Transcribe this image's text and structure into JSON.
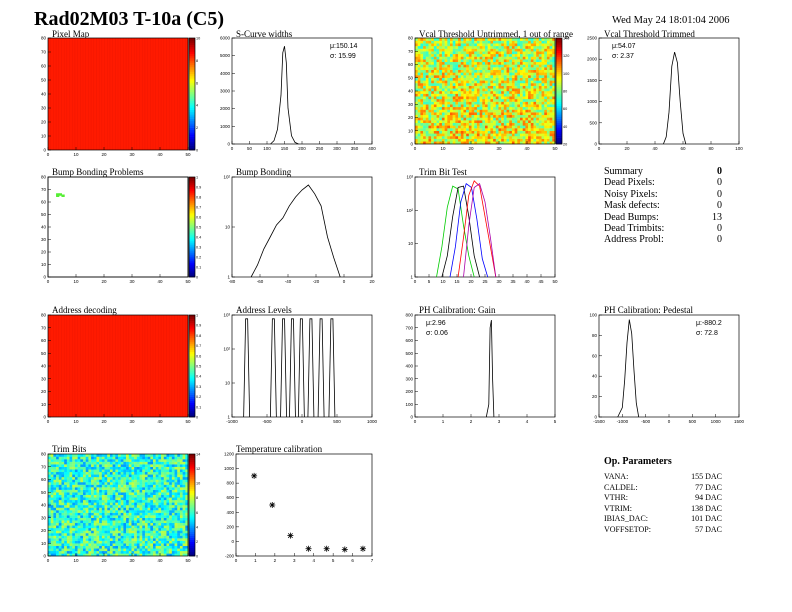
{
  "header": {
    "title": "Rad02M03 T-10a (C5)",
    "date": "Wed May 24 18:01:04 2006"
  },
  "panels": {
    "pixel_map": {
      "title": "Pixel Map",
      "xticks": [
        "0",
        "10",
        "20",
        "30",
        "40",
        "50"
      ],
      "yticks": [
        "0",
        "10",
        "20",
        "30",
        "40",
        "50",
        "60",
        "70",
        "80"
      ],
      "zticks": [
        "0",
        "2",
        "4",
        "6",
        "8",
        "10"
      ]
    },
    "scurve": {
      "title": "S-Curve widths",
      "stat1": "μ:150.14",
      "stat2": "σ: 15.99",
      "xticks": [
        "0",
        "50",
        "100",
        "150",
        "200",
        "250",
        "300",
        "350",
        "400"
      ],
      "yticks": [
        "0",
        "1000",
        "2000",
        "3000",
        "4000",
        "5000",
        "6000"
      ]
    },
    "vcal_untrimmed": {
      "title": "Vcal Threshold Untrimmed, 1 out of range",
      "xticks": [
        "0",
        "10",
        "20",
        "30",
        "40",
        "50"
      ],
      "yticks": [
        "0",
        "10",
        "20",
        "30",
        "40",
        "50",
        "60",
        "70",
        "80"
      ],
      "zticks": [
        "20",
        "40",
        "60",
        "80",
        "100",
        "120",
        "140"
      ]
    },
    "vcal_trimmed": {
      "title": "Vcal Threshold Trimmed",
      "stat1": "μ:54.07",
      "stat2": "σ: 2.37",
      "xticks": [
        "0",
        "20",
        "40",
        "60",
        "80",
        "100"
      ],
      "yticks": [
        "0",
        "500",
        "1000",
        "1500",
        "2000",
        "2500"
      ]
    },
    "bump_problems": {
      "title": "Bump Bonding Problems",
      "xticks": [
        "0",
        "10",
        "20",
        "30",
        "40",
        "50"
      ],
      "yticks": [
        "0",
        "10",
        "20",
        "30",
        "40",
        "50",
        "60",
        "70",
        "80"
      ],
      "zticks": [
        "0",
        "0.1",
        "0.2",
        "0.3",
        "0.4",
        "0.5",
        "0.6",
        "0.7",
        "0.8",
        "0.9",
        "1"
      ]
    },
    "bump_bonding": {
      "title": "Bump Bonding",
      "xticks": [
        "-80",
        "-60",
        "-40",
        "-20",
        "0",
        "20"
      ],
      "yticks": [
        "1",
        "10",
        "10²"
      ]
    },
    "trim_bit": {
      "title": "Trim Bit Test",
      "xticks": [
        "0",
        "5",
        "10",
        "15",
        "20",
        "25",
        "30",
        "35",
        "40",
        "45",
        "50"
      ],
      "yticks": [
        "1",
        "10",
        "10²",
        "10³"
      ]
    },
    "address_decoding": {
      "title": "Address decoding",
      "xticks": [
        "0",
        "10",
        "20",
        "30",
        "40",
        "50"
      ],
      "yticks": [
        "0",
        "10",
        "20",
        "30",
        "40",
        "50",
        "60",
        "70",
        "80"
      ],
      "zticks": [
        "0",
        "0.1",
        "0.2",
        "0.3",
        "0.4",
        "0.5",
        "0.6",
        "0.7",
        "0.8",
        "0.9",
        "1"
      ]
    },
    "address_levels": {
      "title": "Address Levels",
      "xticks": [
        "-1000",
        "-500",
        "0",
        "500",
        "1000"
      ],
      "yticks": [
        "1",
        "10",
        "10²",
        "10³"
      ]
    },
    "ph_gain": {
      "title": "PH Calibration: Gain",
      "stat1": "μ:2.96",
      "stat2": "σ: 0.06",
      "xticks": [
        "0",
        "1",
        "2",
        "3",
        "4",
        "5"
      ],
      "yticks": [
        "0",
        "100",
        "200",
        "300",
        "400",
        "500",
        "600",
        "700",
        "800"
      ]
    },
    "ph_pedestal": {
      "title": "PH Calibration: Pedestal",
      "stat1": "μ:-880.2",
      "stat2": "σ: 72.8",
      "xticks": [
        "-1500",
        "-1000",
        "-500",
        "0",
        "500",
        "1000",
        "1500"
      ],
      "yticks": [
        "0",
        "20",
        "40",
        "60",
        "80",
        "100"
      ]
    },
    "trim_bits": {
      "title": "Trim Bits",
      "xticks": [
        "0",
        "10",
        "20",
        "30",
        "40",
        "50"
      ],
      "yticks": [
        "0",
        "10",
        "20",
        "30",
        "40",
        "50",
        "60",
        "70",
        "80"
      ],
      "zticks": [
        "0",
        "2",
        "4",
        "6",
        "8",
        "10",
        "12",
        "14"
      ]
    },
    "temperature": {
      "title": "Temperature calibration",
      "xticks": [
        "0",
        "1",
        "2",
        "3",
        "4",
        "5",
        "6",
        "7"
      ],
      "yticks": [
        "-200",
        "0",
        "200",
        "400",
        "600",
        "800",
        "1000",
        "1200"
      ]
    }
  },
  "summary": {
    "title": "Summary",
    "total": "0",
    "rows": [
      {
        "label": "Dead Pixels:",
        "value": "0"
      },
      {
        "label": "Noisy Pixels:",
        "value": "0"
      },
      {
        "label": "Mask defects:",
        "value": "0"
      },
      {
        "label": "Dead Bumps:",
        "value": "13"
      },
      {
        "label": "Dead Trimbits:",
        "value": "0"
      },
      {
        "label": "Address Probl:",
        "value": "0"
      }
    ]
  },
  "op_params": {
    "title": "Op. Parameters",
    "rows": [
      {
        "label": "VANA:",
        "value": "155 DAC"
      },
      {
        "label": "CALDEL:",
        "value": "77 DAC"
      },
      {
        "label": "VTHR:",
        "value": "94 DAC"
      },
      {
        "label": "VTRIM:",
        "value": "138 DAC"
      },
      {
        "label": "IBIAS_DAC:",
        "value": "101 DAC"
      },
      {
        "label": "VOFFSETOP:",
        "value": "57 DAC"
      }
    ]
  },
  "chart_data": [
    {
      "type": "heatmap",
      "title": "Pixel Map",
      "xlim": [
        0,
        52
      ],
      "ylim": [
        0,
        80
      ],
      "fill": "uniform-max",
      "zlim": [
        0,
        10
      ]
    },
    {
      "type": "bar",
      "title": "S-Curve widths",
      "x": [
        110,
        120,
        130,
        140,
        145,
        150,
        155,
        160,
        170,
        180,
        190
      ],
      "values": [
        0,
        200,
        900,
        3000,
        5600,
        6000,
        5000,
        2200,
        500,
        100,
        0
      ],
      "xlim": [
        0,
        400
      ],
      "ylim": [
        0,
        6500
      ]
    },
    {
      "type": "heatmap",
      "title": "Vcal Threshold Untrimmed, 1 out of range",
      "xlim": [
        0,
        52
      ],
      "ylim": [
        0,
        80
      ],
      "zlim": [
        0,
        150
      ]
    },
    {
      "type": "bar",
      "title": "Vcal Threshold Trimmed",
      "x": [
        46,
        48,
        50,
        52,
        54,
        56,
        58,
        60,
        62
      ],
      "values": [
        0,
        200,
        900,
        2200,
        2600,
        2300,
        1200,
        300,
        0
      ],
      "xlim": [
        0,
        100
      ],
      "ylim": [
        0,
        3000
      ]
    },
    {
      "type": "heatmap",
      "title": "Bump Bonding Problems",
      "xlim": [
        0,
        52
      ],
      "ylim": [
        0,
        80
      ],
      "zlim": [
        0,
        1
      ],
      "cells": [
        {
          "x": 3,
          "y": 66
        },
        {
          "x": 4,
          "y": 66
        },
        {
          "x": 5,
          "y": 65
        },
        {
          "x": 3,
          "y": 65
        }
      ]
    },
    {
      "type": "line",
      "title": "Bump Bonding",
      "xlim": [
        -90,
        20
      ],
      "log_y": true,
      "x": [
        -75,
        -70,
        -65,
        -60,
        -55,
        -50,
        -45,
        -40,
        -35,
        -30,
        -25,
        -20,
        -15,
        -10,
        -5
      ],
      "values": [
        1,
        2,
        5,
        10,
        20,
        30,
        60,
        100,
        150,
        200,
        120,
        60,
        10,
        3,
        1
      ]
    },
    {
      "type": "line",
      "title": "Trim Bit Test",
      "xlim": [
        0,
        52
      ],
      "log_y": true,
      "series": [
        {
          "color": "#00cc00",
          "x": [
            8,
            10,
            12,
            14,
            16,
            18,
            20,
            22
          ],
          "values": [
            1,
            10,
            200,
            1000,
            800,
            50,
            5,
            1
          ]
        },
        {
          "color": "#000000",
          "x": [
            10,
            12,
            14,
            16,
            18,
            20,
            22,
            24
          ],
          "values": [
            1,
            5,
            100,
            900,
            1000,
            100,
            5,
            1
          ]
        },
        {
          "color": "#0000ff",
          "x": [
            13,
            15,
            17,
            19,
            21,
            23,
            25,
            27
          ],
          "values": [
            1,
            10,
            300,
            1200,
            900,
            80,
            4,
            1
          ]
        },
        {
          "color": "#ff0000",
          "x": [
            16,
            18,
            20,
            22,
            24,
            26,
            28,
            30
          ],
          "values": [
            1,
            20,
            500,
            1500,
            1000,
            100,
            10,
            1
          ]
        },
        {
          "color": "#aa00aa",
          "x": [
            18,
            20,
            22,
            24,
            26,
            28,
            30
          ],
          "values": [
            1,
            50,
            900,
            1200,
            300,
            20,
            1
          ]
        }
      ]
    },
    {
      "type": "heatmap",
      "title": "Address decoding",
      "xlim": [
        0,
        52
      ],
      "ylim": [
        0,
        80
      ],
      "fill": "uniform-max",
      "zlim": [
        0,
        1
      ]
    },
    {
      "type": "bar",
      "title": "Address Levels",
      "xlim": [
        -1100,
        1100
      ],
      "log_y": true,
      "peaks": [
        -870,
        -450,
        -290,
        -150,
        -10,
        140,
        300,
        470
      ],
      "peak_values": [
        1500,
        1500,
        1500,
        1500,
        1500,
        1500,
        1500,
        1500
      ]
    },
    {
      "type": "bar",
      "title": "PH Calibration: Gain",
      "x": [
        2.8,
        2.9,
        2.95,
        3.0,
        3.05,
        3.1
      ],
      "values": [
        0,
        100,
        700,
        760,
        300,
        0
      ],
      "xlim": [
        0,
        5.5
      ],
      "ylim": [
        0,
        800
      ]
    },
    {
      "type": "bar",
      "title": "PH Calibration: Pedestal",
      "x": [
        -1100,
        -1000,
        -950,
        -900,
        -850,
        -800,
        -750,
        -700,
        -650
      ],
      "values": [
        0,
        10,
        40,
        80,
        105,
        90,
        50,
        15,
        0
      ],
      "xlim": [
        -1500,
        1500
      ],
      "ylim": [
        0,
        110
      ]
    },
    {
      "type": "heatmap",
      "title": "Trim Bits",
      "xlim": [
        0,
        52
      ],
      "ylim": [
        0,
        80
      ],
      "zlim": [
        0,
        15
      ]
    },
    {
      "type": "scatter",
      "title": "Temperature calibration",
      "x": [
        1,
        2,
        3,
        4,
        5,
        6,
        7
      ],
      "values": [
        900,
        500,
        80,
        -100,
        -100,
        -110,
        -100
      ],
      "xlim": [
        0,
        7.5
      ],
      "ylim": [
        -200,
        1200
      ]
    }
  ]
}
